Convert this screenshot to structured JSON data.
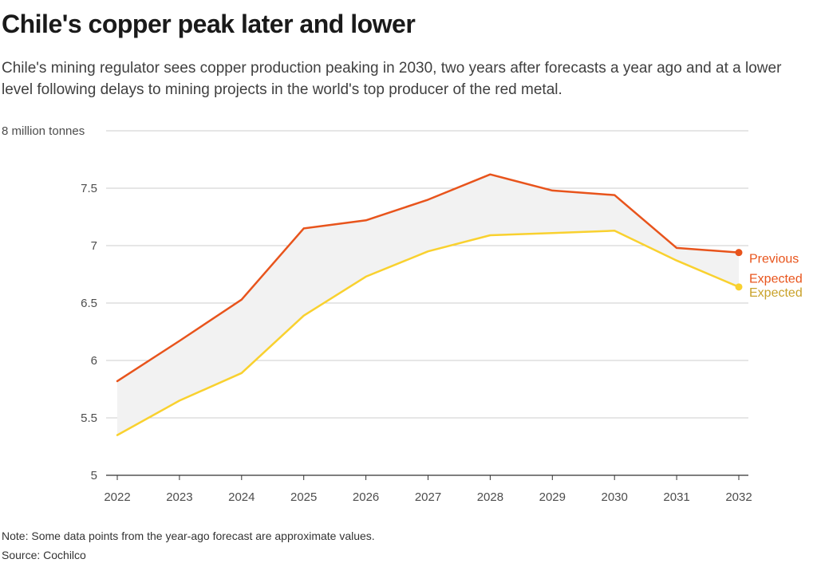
{
  "header": {
    "title": "Chile's copper peak later and lower",
    "subtitle": "Chile's mining regulator sees copper production peaking in 2030, two years after forecasts a year ago and at a lower level following delays to mining projects in the world's top producer of the red metal."
  },
  "footer": {
    "note": "Note: Some data points from the year-ago forecast are approximate values.",
    "source": "Source: Cochilco"
  },
  "chart_data": {
    "type": "line",
    "x": [
      2022,
      2023,
      2024,
      2025,
      2026,
      2027,
      2028,
      2029,
      2030,
      2031,
      2032
    ],
    "x_tick_labels": [
      "2022",
      "2023",
      "2024",
      "2025",
      "2026",
      "2027",
      "2028",
      "2029",
      "2030",
      "2031",
      "2032"
    ],
    "ylim": [
      5,
      8
    ],
    "y_ticks": [
      5,
      5.5,
      6,
      6.5,
      7,
      7.5,
      8
    ],
    "y_tick_labels": [
      "5",
      "5.5",
      "6",
      "6.5",
      "7",
      "7.5",
      "8 million tonnes"
    ],
    "grid": true,
    "shaded_between_series": true,
    "series": [
      {
        "name_lines": [
          "Previous",
          "Expected"
        ],
        "color": "#e8541c",
        "values": [
          5.82,
          6.17,
          6.53,
          7.15,
          7.22,
          7.4,
          7.62,
          7.48,
          7.44,
          6.98,
          6.94
        ]
      },
      {
        "name_lines": [
          "Expected"
        ],
        "color": "#f9d12f",
        "label_color": "#c9a22a",
        "values": [
          5.35,
          5.65,
          5.89,
          6.39,
          6.73,
          6.95,
          7.09,
          7.11,
          7.13,
          6.87,
          6.64
        ]
      }
    ],
    "colors": {
      "grid": "#cccccc",
      "axis": "#333333",
      "band_fill": "#f2f2f2"
    }
  }
}
